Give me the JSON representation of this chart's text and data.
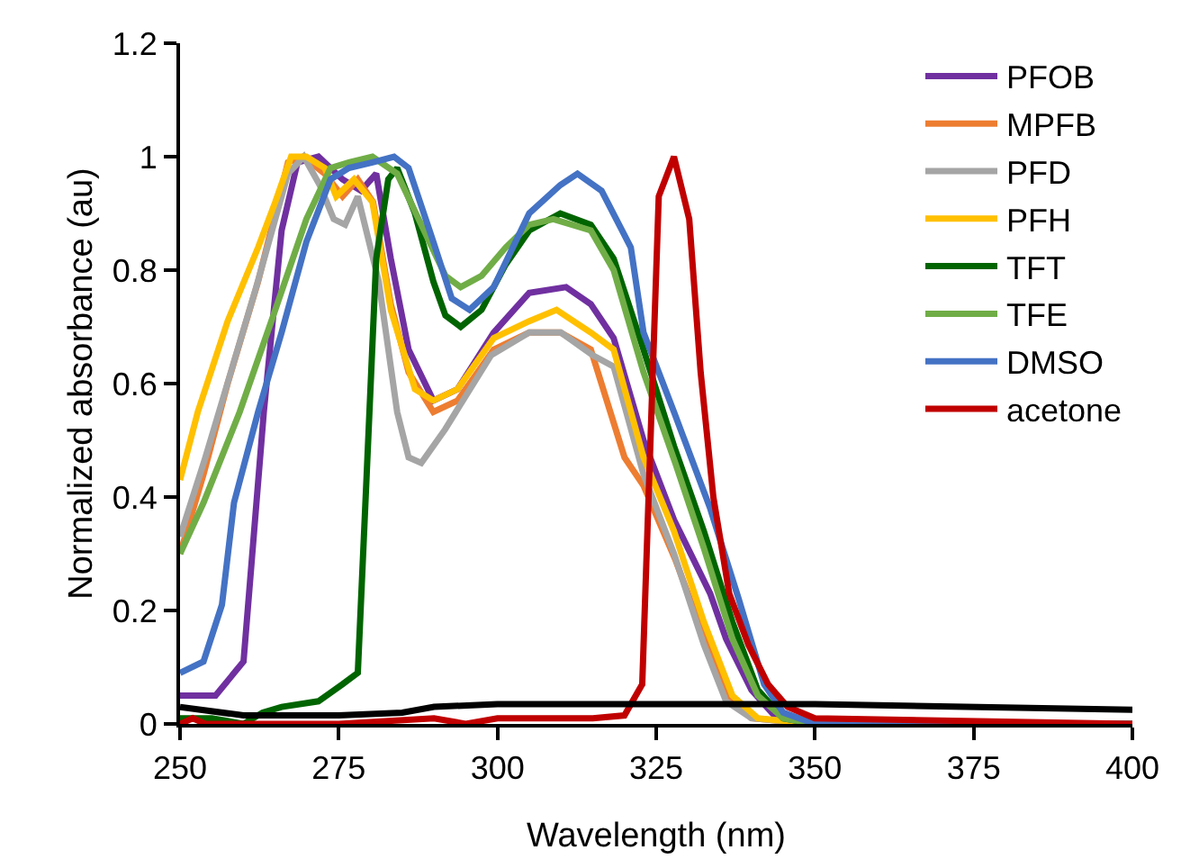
{
  "chart_data": {
    "type": "line",
    "xlabel": "Wavelength (nm)",
    "ylabel": "Normalized absorbance (au)",
    "xlim": [
      250,
      400
    ],
    "xticks": [
      250,
      275,
      300,
      325,
      350,
      375,
      400
    ],
    "ylim": [
      0,
      1.2
    ],
    "yticks": [
      0,
      0.2,
      0.4,
      0.6,
      0.8,
      1,
      1.2
    ],
    "grid": false,
    "legend": "top right",
    "marker": "none",
    "line_style": "solid",
    "series": [
      {
        "name": "PFOB",
        "color": "#7030a0",
        "x": [
          250,
          255.6,
          260,
          263.2,
          266,
          268.5,
          271.8,
          275.6,
          278.5,
          280.9,
          283.2,
          286,
          289.9,
          293.7,
          299.4,
          305,
          310.8,
          314.7,
          318.3,
          323,
          327.8,
          333.5,
          336,
          340,
          344,
          350,
          400
        ],
        "values": [
          0.05,
          0.05,
          0.11,
          0.55,
          0.87,
          0.99,
          1.0,
          0.96,
          0.94,
          0.97,
          0.82,
          0.66,
          0.57,
          0.59,
          0.69,
          0.76,
          0.77,
          0.74,
          0.68,
          0.5,
          0.36,
          0.23,
          0.15,
          0.06,
          0.01,
          0,
          0
        ]
      },
      {
        "name": "MPFB",
        "color": "#ed7d31",
        "x": [
          250,
          253.7,
          257.5,
          262.3,
          267,
          269.4,
          272.8,
          275.6,
          278,
          280.4,
          283.2,
          286,
          289.9,
          293.7,
          299.4,
          305,
          309.9,
          314.7,
          320,
          323,
          328,
          333,
          337,
          340,
          350,
          400
        ],
        "values": [
          0.3,
          0.44,
          0.6,
          0.78,
          0.99,
          1.0,
          0.97,
          0.93,
          0.96,
          0.92,
          0.74,
          0.62,
          0.55,
          0.57,
          0.66,
          0.69,
          0.69,
          0.66,
          0.47,
          0.42,
          0.29,
          0.14,
          0.04,
          0.01,
          0,
          0
        ]
      },
      {
        "name": "PFD",
        "color": "#a5a5a5",
        "x": [
          250,
          254,
          258,
          262,
          267,
          269.5,
          272,
          274.2,
          276,
          278,
          281.3,
          284.2,
          286,
          288,
          291.8,
          294,
          299,
          305,
          310,
          315,
          318.3,
          323,
          327.8,
          332.5,
          336,
          340,
          350,
          400
        ],
        "values": [
          0.33,
          0.47,
          0.62,
          0.77,
          0.97,
          1.0,
          0.95,
          0.89,
          0.88,
          0.93,
          0.78,
          0.55,
          0.47,
          0.46,
          0.52,
          0.56,
          0.65,
          0.69,
          0.69,
          0.65,
          0.63,
          0.44,
          0.3,
          0.14,
          0.04,
          0.01,
          0,
          0
        ]
      },
      {
        "name": "PFH",
        "color": "#ffc000",
        "x": [
          250,
          252.8,
          257.5,
          262.3,
          265,
          267.5,
          269.9,
          272.8,
          274.6,
          277.4,
          280.3,
          283.2,
          287,
          289.9,
          293.7,
          299.4,
          305,
          309.3,
          314.7,
          318.3,
          323,
          327.8,
          332.5,
          337,
          341,
          350,
          400
        ],
        "values": [
          0.43,
          0.55,
          0.71,
          0.84,
          0.92,
          1.0,
          1.0,
          0.98,
          0.93,
          0.96,
          0.92,
          0.73,
          0.59,
          0.57,
          0.59,
          0.68,
          0.71,
          0.73,
          0.69,
          0.66,
          0.47,
          0.34,
          0.18,
          0.05,
          0.01,
          0,
          0
        ]
      },
      {
        "name": "TFT",
        "color": "#006400",
        "x": [
          250,
          255,
          260,
          263,
          266,
          271.8,
          275.6,
          278,
          279.4,
          280.9,
          282.8,
          284.2,
          287,
          289.9,
          291.8,
          294.2,
          297.5,
          301.3,
          305,
          309.9,
          314.7,
          318.3,
          323,
          327.8,
          332.5,
          337,
          341,
          345,
          350,
          400
        ],
        "values": [
          0.01,
          0.01,
          0,
          0.02,
          0.03,
          0.04,
          0.07,
          0.09,
          0.44,
          0.82,
          0.96,
          0.98,
          0.9,
          0.78,
          0.72,
          0.7,
          0.73,
          0.81,
          0.87,
          0.9,
          0.88,
          0.82,
          0.66,
          0.49,
          0.34,
          0.18,
          0.06,
          0.01,
          0,
          0
        ]
      },
      {
        "name": "TFE",
        "color": "#70ad47",
        "x": [
          250,
          253.7,
          259.4,
          265,
          269.9,
          273.7,
          276.6,
          280.3,
          284.2,
          288,
          291.8,
          294.2,
          297.5,
          301.3,
          305,
          308.8,
          314.7,
          318.3,
          323,
          328,
          332.5,
          337,
          341,
          345,
          350,
          400
        ],
        "values": [
          0.3,
          0.39,
          0.55,
          0.73,
          0.89,
          0.98,
          0.99,
          1.0,
          0.97,
          0.88,
          0.79,
          0.77,
          0.79,
          0.84,
          0.88,
          0.89,
          0.87,
          0.8,
          0.62,
          0.46,
          0.31,
          0.15,
          0.05,
          0.01,
          0,
          0
        ]
      },
      {
        "name": "DMSO",
        "color": "#4472c4",
        "x": [
          250,
          253.7,
          256.6,
          258.5,
          262.3,
          266,
          269.9,
          273.7,
          276.6,
          280.3,
          283.7,
          286,
          289.9,
          292.8,
          295.6,
          299.4,
          305,
          309.9,
          312.6,
          316.4,
          321,
          323,
          327.8,
          333.5,
          338,
          342,
          345,
          350,
          400
        ],
        "values": [
          0.09,
          0.11,
          0.21,
          0.39,
          0.55,
          0.69,
          0.85,
          0.96,
          0.98,
          0.99,
          1.0,
          0.98,
          0.85,
          0.75,
          0.73,
          0.77,
          0.9,
          0.95,
          0.97,
          0.94,
          0.84,
          0.69,
          0.55,
          0.38,
          0.22,
          0.07,
          0.02,
          0,
          0
        ]
      },
      {
        "name": "acetone",
        "color": "#c00000",
        "x": [
          250,
          252,
          254,
          275,
          290,
          295,
          300,
          305,
          310,
          315,
          320,
          322.8,
          325.4,
          327.8,
          330.2,
          332,
          334,
          336.5,
          339.5,
          342.6,
          345.7,
          350,
          400
        ],
        "values": [
          0,
          0.01,
          0,
          0,
          0.01,
          0,
          0.01,
          0.01,
          0.01,
          0.01,
          0.015,
          0.07,
          0.93,
          1.0,
          0.89,
          0.62,
          0.4,
          0.23,
          0.14,
          0.07,
          0.03,
          0.01,
          0
        ]
      },
      {
        "color": "#000000",
        "x": [
          250,
          260,
          275,
          285,
          290,
          300,
          325,
          350,
          400
        ],
        "values": [
          0.03,
          0.015,
          0.015,
          0.02,
          0.03,
          0.035,
          0.035,
          0.035,
          0.025
        ]
      }
    ]
  }
}
